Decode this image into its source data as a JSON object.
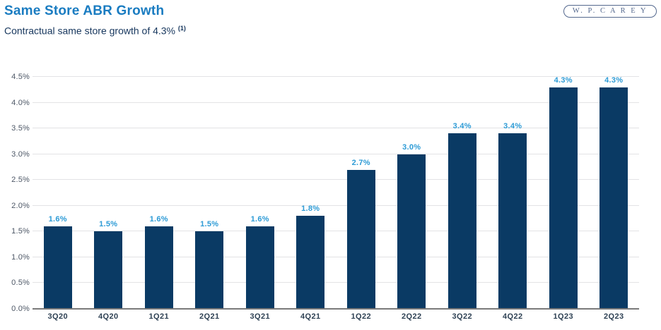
{
  "header": {
    "title": "Same Store ABR Growth",
    "subtitle": "Contractual same store growth of 4.3%",
    "subtitle_superscript": "(1)",
    "logo_text": "W. P. C A R E Y"
  },
  "colors": {
    "title_blue": "#1a7cc1",
    "subtitle_navy": "#16365d",
    "bar_navy": "#0a3a64",
    "value_label_blue": "#2d9bd6",
    "gridline_gray": "#e3e3e5",
    "axis_line_gray": "#7a7a7a",
    "logo_slate": "#54688e"
  },
  "chart_data": {
    "type": "bar",
    "title": "Same Store ABR Growth",
    "categories": [
      "3Q20",
      "4Q20",
      "1Q21",
      "2Q21",
      "3Q21",
      "4Q21",
      "1Q22",
      "2Q22",
      "3Q22",
      "4Q22",
      "1Q23",
      "2Q23"
    ],
    "values": [
      1.6,
      1.5,
      1.6,
      1.5,
      1.6,
      1.8,
      2.7,
      3.0,
      3.4,
      3.4,
      4.3,
      4.3
    ],
    "value_labels": [
      "1.6%",
      "1.5%",
      "1.6%",
      "1.5%",
      "1.6%",
      "1.8%",
      "2.7%",
      "3.0%",
      "3.4%",
      "3.4%",
      "4.3%",
      "4.3%"
    ],
    "xlabel": "",
    "ylabel": "",
    "ylim": [
      0,
      4.5
    ],
    "ytick_step": 0.5,
    "ytick_labels": [
      "0.0%",
      "0.5%",
      "1.0%",
      "1.5%",
      "2.0%",
      "2.5%",
      "3.0%",
      "3.5%",
      "4.0%",
      "4.5%"
    ],
    "grid": true,
    "legend": false
  }
}
